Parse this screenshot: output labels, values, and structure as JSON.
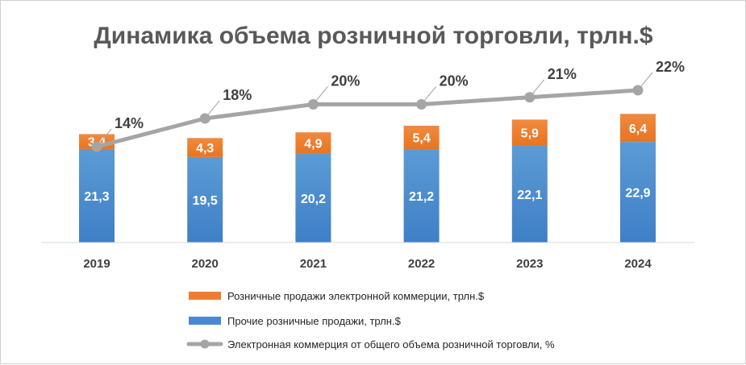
{
  "chart_data": {
    "type": "bar",
    "subtype": "stacked-bar-with-line",
    "title": "Динамика объема розничной торговли, трлн.$",
    "categories": [
      "2019",
      "2020",
      "2021",
      "2022",
      "2023",
      "2024"
    ],
    "series": [
      {
        "name": "Прочие розничные продажи, трлн.$",
        "values": [
          21.3,
          19.5,
          20.2,
          21.2,
          22.1,
          22.9
        ],
        "labels": [
          "21,3",
          "19,5",
          "20,2",
          "21,2",
          "22,1",
          "22,9"
        ],
        "color": "#4a89cf"
      },
      {
        "name": "Розничные продажи электронной коммерции, трлн.$",
        "values": [
          3.4,
          4.3,
          4.9,
          5.4,
          5.9,
          6.4
        ],
        "labels": [
          "3,4",
          "4,3",
          "4,9",
          "5,4",
          "5,9",
          "6,4"
        ],
        "color": "#ed7d31"
      }
    ],
    "line_series": {
      "name": "Электронная коммерция от общего объема розничной торговли, %",
      "values": [
        14,
        18,
        20,
        20,
        21,
        22
      ],
      "labels": [
        "14%",
        "18%",
        "20%",
        "20%",
        "21%",
        "22%"
      ],
      "color": "#a5a5a5"
    },
    "ylim": [
      0,
      30
    ],
    "xlabel": "",
    "ylabel": "",
    "legend_position": "bottom"
  }
}
